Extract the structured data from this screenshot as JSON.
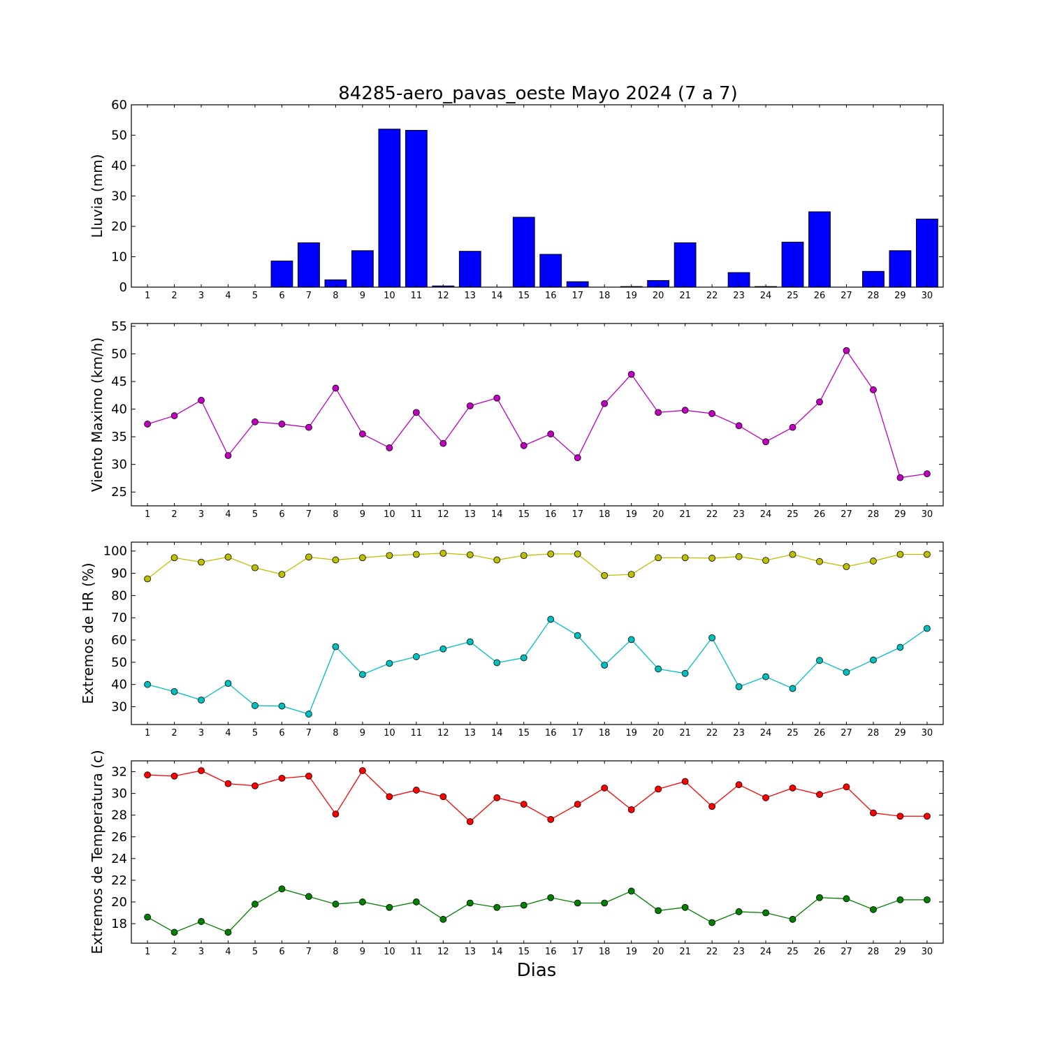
{
  "figure": {
    "title": "84285-aero_pavas_oeste Mayo 2024  (7 a 7)",
    "xlabel": "Dias"
  },
  "chart_data": [
    {
      "type": "bar",
      "ylabel": "Lluvia (mm)",
      "ylim": [
        0,
        60
      ],
      "yticks": [
        0,
        10,
        20,
        30,
        40,
        50,
        60
      ],
      "categories": [
        "1",
        "2",
        "3",
        "4",
        "5",
        "6",
        "7",
        "8",
        "9",
        "10",
        "11",
        "12",
        "13",
        "14",
        "15",
        "16",
        "17",
        "18",
        "19",
        "20",
        "21",
        "22",
        "23",
        "24",
        "25",
        "26",
        "27",
        "28",
        "29",
        "30"
      ],
      "series": [
        {
          "color": "#0000ff",
          "values": [
            0,
            0,
            0,
            0,
            0,
            8.6,
            14.6,
            2.4,
            12.0,
            52.0,
            51.6,
            0.4,
            11.8,
            0,
            23.0,
            10.8,
            1.8,
            0,
            0.2,
            2.2,
            14.6,
            0,
            4.8,
            0.2,
            14.8,
            24.8,
            0,
            5.2,
            12.0,
            22.4
          ]
        }
      ],
      "grid": false
    },
    {
      "type": "line",
      "ylabel": "Viento Maximo (km/h)",
      "ylim": [
        22.5,
        55.5
      ],
      "yticks": [
        25,
        30,
        35,
        40,
        45,
        50,
        55
      ],
      "categories": [
        "1",
        "2",
        "3",
        "4",
        "5",
        "6",
        "7",
        "8",
        "9",
        "10",
        "11",
        "12",
        "13",
        "14",
        "15",
        "16",
        "17",
        "18",
        "19",
        "20",
        "21",
        "22",
        "23",
        "24",
        "25",
        "26",
        "27",
        "28",
        "29",
        "30"
      ],
      "series": [
        {
          "color": "#bf00bf",
          "values": [
            37.3,
            38.8,
            41.6,
            31.6,
            37.7,
            37.3,
            36.7,
            43.8,
            35.5,
            33.0,
            39.4,
            33.8,
            40.6,
            42.0,
            33.4,
            35.5,
            31.2,
            41.0,
            46.3,
            39.4,
            39.8,
            39.2,
            37.0,
            34.1,
            36.7,
            41.3,
            50.6,
            43.5,
            27.6,
            28.3
          ]
        }
      ],
      "grid": false
    },
    {
      "type": "line",
      "ylabel": "Extremos de HR (%)",
      "ylim": [
        22,
        104
      ],
      "yticks": [
        30,
        40,
        50,
        60,
        70,
        80,
        90,
        100
      ],
      "categories": [
        "1",
        "2",
        "3",
        "4",
        "5",
        "6",
        "7",
        "8",
        "9",
        "10",
        "11",
        "12",
        "13",
        "14",
        "15",
        "16",
        "17",
        "18",
        "19",
        "20",
        "21",
        "22",
        "23",
        "24",
        "25",
        "26",
        "27",
        "28",
        "29",
        "30"
      ],
      "series": [
        {
          "color": "#bfbf00",
          "values": [
            87.5,
            97.0,
            95.0,
            97.3,
            92.5,
            89.5,
            97.3,
            96.0,
            97.0,
            98.0,
            98.5,
            99.0,
            98.3,
            96.0,
            98.0,
            98.7,
            98.7,
            89.0,
            89.5,
            97.0,
            97.0,
            96.8,
            97.5,
            95.8,
            98.5,
            95.3,
            93.0,
            95.5,
            98.5,
            98.5
          ]
        },
        {
          "color": "#00bfbf",
          "values": [
            40.0,
            36.8,
            33.0,
            40.5,
            30.5,
            30.3,
            26.7,
            57.0,
            44.5,
            49.5,
            52.5,
            56.0,
            59.2,
            49.8,
            52.0,
            69.3,
            62.0,
            48.7,
            60.2,
            47.0,
            45.0,
            61.0,
            39.0,
            43.5,
            38.2,
            50.8,
            45.5,
            51.0,
            56.7,
            65.2
          ]
        }
      ],
      "grid": false
    },
    {
      "type": "line",
      "ylabel": "Extremos de Temperatura (c)",
      "ylim": [
        16.2,
        33.0
      ],
      "yticks": [
        18,
        20,
        22,
        24,
        26,
        28,
        30,
        32
      ],
      "categories": [
        "1",
        "2",
        "3",
        "4",
        "5",
        "6",
        "7",
        "8",
        "9",
        "10",
        "11",
        "12",
        "13",
        "14",
        "15",
        "16",
        "17",
        "18",
        "19",
        "20",
        "21",
        "22",
        "23",
        "24",
        "25",
        "26",
        "27",
        "28",
        "29",
        "30"
      ],
      "series": [
        {
          "color": "#ff0000",
          "values": [
            31.7,
            31.6,
            32.1,
            30.9,
            30.7,
            31.4,
            31.6,
            28.1,
            32.1,
            29.7,
            30.3,
            29.7,
            27.4,
            29.6,
            29.0,
            27.6,
            29.0,
            30.5,
            28.5,
            30.4,
            31.1,
            28.8,
            30.8,
            29.6,
            30.5,
            29.9,
            30.6,
            28.2,
            27.9,
            27.9
          ]
        },
        {
          "color": "#007f00",
          "values": [
            18.6,
            17.2,
            18.2,
            17.2,
            19.8,
            21.2,
            20.5,
            19.8,
            20.0,
            19.5,
            20.0,
            18.4,
            19.9,
            19.5,
            19.7,
            20.4,
            19.9,
            19.9,
            21.0,
            19.2,
            19.5,
            18.1,
            19.1,
            19.0,
            18.4,
            20.4,
            20.3,
            19.3,
            20.2,
            20.2
          ]
        }
      ],
      "grid": false
    }
  ]
}
